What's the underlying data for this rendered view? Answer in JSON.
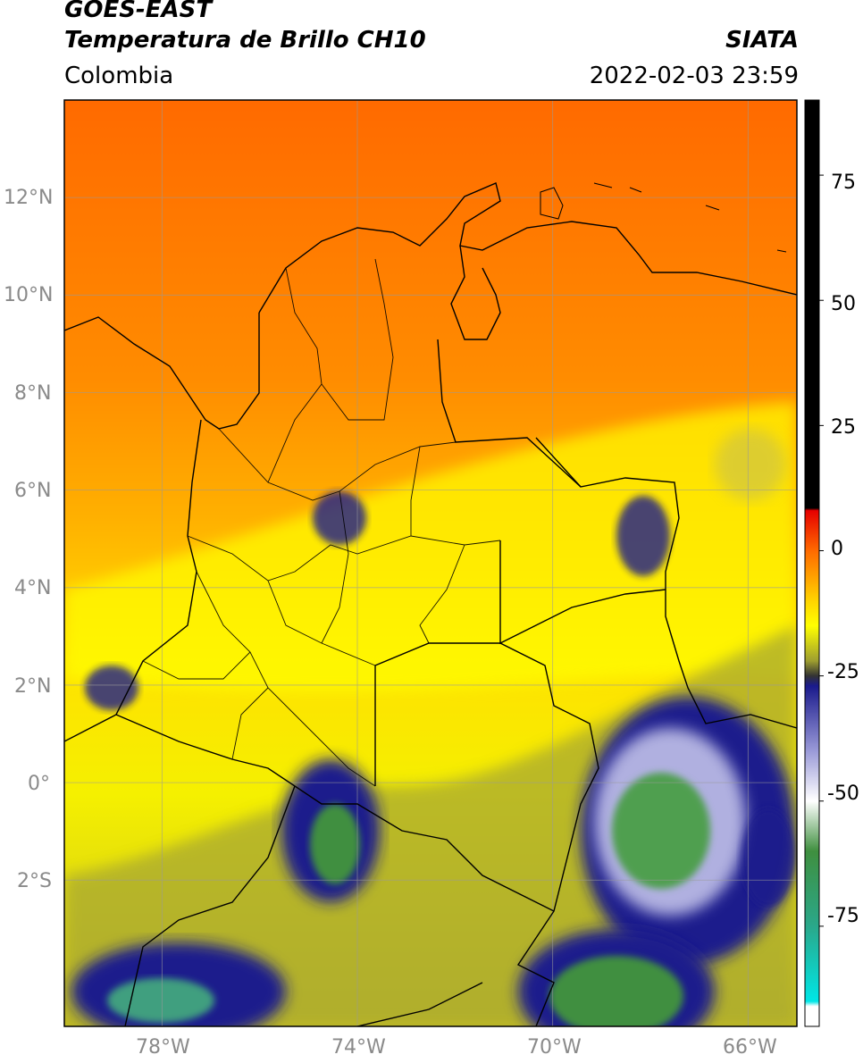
{
  "header": {
    "satellite": "GOES-EAST",
    "product": "Temperatura de Brillo CH10",
    "region": "Colombia",
    "source": "SIATA",
    "datetime": "2022-02-03 23:59"
  },
  "axes": {
    "lat_labels": [
      "12°N",
      "10°N",
      "8°N",
      "6°N",
      "4°N",
      "2°N",
      "0°",
      "2°S"
    ],
    "lat_values": [
      12,
      10,
      8,
      6,
      4,
      2,
      0,
      -2
    ],
    "lon_labels": [
      "78°W",
      "74°W",
      "70°W",
      "66°W"
    ],
    "lon_values": [
      -78,
      -74,
      -70,
      -66
    ],
    "lon_range": [
      -80,
      -65
    ],
    "lat_range": [
      -5,
      14
    ]
  },
  "colorbar": {
    "labels": [
      "75",
      "50",
      "25",
      "0",
      "-25",
      "-50",
      "-75"
    ],
    "values": [
      75,
      50,
      25,
      0,
      -25,
      -50,
      -75
    ],
    "range": [
      -95,
      90
    ],
    "stops": [
      {
        "v": 90,
        "c": "#000000"
      },
      {
        "v": 8.5,
        "c": "#000000"
      },
      {
        "v": 8,
        "c": "#e60000"
      },
      {
        "v": 0,
        "c": "#ff6a00"
      },
      {
        "v": -10,
        "c": "#ffd400"
      },
      {
        "v": -15,
        "c": "#ffff00"
      },
      {
        "v": -22,
        "c": "#9e9e30"
      },
      {
        "v": -25,
        "c": "#333333"
      },
      {
        "v": -27,
        "c": "#1a1a8c"
      },
      {
        "v": -40,
        "c": "#9a9ad8"
      },
      {
        "v": -50,
        "c": "#ffffff"
      },
      {
        "v": -60,
        "c": "#3f8f3f"
      },
      {
        "v": -75,
        "c": "#2aa88a"
      },
      {
        "v": -90,
        "c": "#00e6e6"
      },
      {
        "v": -91,
        "c": "#ffffff"
      },
      {
        "v": -95,
        "c": "#ffffff"
      }
    ]
  },
  "colors": {
    "orange": "#ff6a00",
    "yellow": "#ffff00",
    "olive": "#9e9e30",
    "navy": "#1a1a8c",
    "green": "#3f8f3f",
    "border": "#000000",
    "grid": "#9a9a9a"
  }
}
